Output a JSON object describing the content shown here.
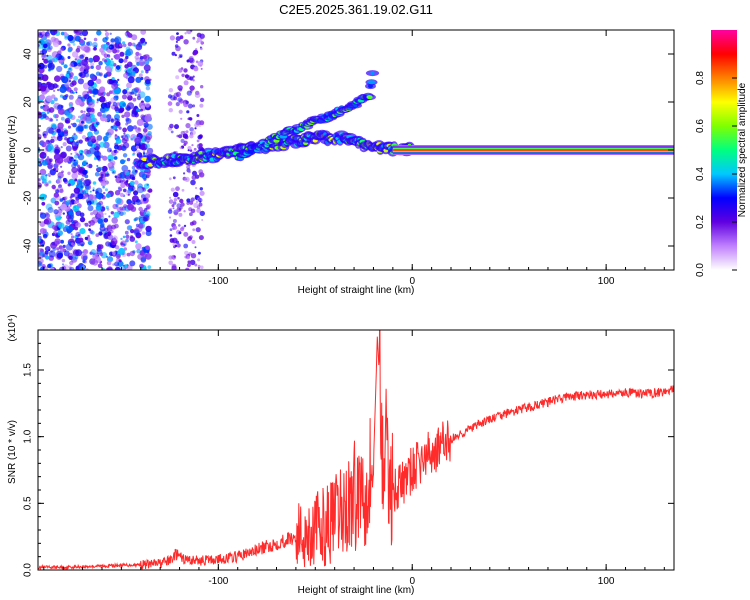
{
  "title": "C2E5.2025.361.19.02.G11",
  "chart_data": [
    {
      "type": "heatmap",
      "name": "spectrogram",
      "xlabel": "Height of straight line (km)",
      "ylabel": "Frequency (Hz)",
      "xlim": [
        -193,
        135
      ],
      "ylim": [
        -50,
        50
      ],
      "xticks": [
        -100,
        0,
        100
      ],
      "yticks": [
        -40,
        -20,
        0,
        20,
        40
      ],
      "colorbar": {
        "label": "Normalized spectral amplitude",
        "range": [
          0,
          1
        ],
        "ticks": [
          "0.0",
          "0.2",
          "0.4",
          "0.6",
          "0.8"
        ],
        "colors": [
          "#ffffff",
          "#c080ff",
          "#6000e0",
          "#0000ff",
          "#00c8ff",
          "#00ff80",
          "#80ff00",
          "#ffff00",
          "#ff8000",
          "#ff0000",
          "#ff00a0"
        ]
      },
      "features": [
        {
          "label": "scattered noise",
          "x_range": [
            -193,
            -135
          ],
          "y_range": [
            -50,
            50
          ],
          "amplitude": 0.15
        },
        {
          "label": "scattered noise",
          "x_range": [
            -125,
            -108
          ],
          "y_range": [
            -50,
            50
          ],
          "amplitude": 0.08
        },
        {
          "label": "main signal trace",
          "points": [
            [
              -140,
              -5
            ],
            [
              -120,
              -4
            ],
            [
              -100,
              -2
            ],
            [
              -80,
              1
            ],
            [
              -65,
              3
            ],
            [
              -50,
              5
            ],
            [
              -35,
              5
            ],
            [
              -20,
              1
            ],
            [
              0,
              0
            ],
            [
              135,
              0
            ]
          ]
        },
        {
          "label": "upper branch",
          "points": [
            [
              -90,
              -3
            ],
            [
              -60,
              9
            ],
            [
              -40,
              15
            ],
            [
              -22,
              23
            ],
            [
              -20,
              35
            ]
          ]
        },
        {
          "label": "constant tone",
          "x_range": [
            -10,
            135
          ],
          "y": 0,
          "amplitude": 0.9
        }
      ]
    },
    {
      "type": "line",
      "name": "snr",
      "xlabel": "Height of straight line (km)",
      "ylabel": "SNR (10 * v/v)",
      "scale_label": "(x10⁴)",
      "xlim": [
        -193,
        135
      ],
      "ylim": [
        0,
        1.8
      ],
      "xticks": [
        -100,
        0,
        100
      ],
      "yticks": [
        "0.0",
        "0.5",
        "1.0",
        "1.5"
      ],
      "series": [
        {
          "name": "SNR",
          "color": "#ff2a2a",
          "x": [
            -193,
            -180,
            -160,
            -140,
            -130,
            -125,
            -122,
            -118,
            -110,
            -100,
            -90,
            -80,
            -70,
            -60,
            -50,
            -45,
            -40,
            -35,
            -30,
            -25,
            -20,
            -18,
            -15,
            -12,
            -10,
            -5,
            0,
            5,
            10,
            20,
            30,
            40,
            50,
            60,
            70,
            80,
            90,
            100,
            110,
            120,
            135
          ],
          "values": [
            0.02,
            0.02,
            0.03,
            0.04,
            0.05,
            0.07,
            0.12,
            0.08,
            0.07,
            0.08,
            0.1,
            0.15,
            0.2,
            0.25,
            0.3,
            0.33,
            0.38,
            0.45,
            0.55,
            0.65,
            0.78,
            1.75,
            0.9,
            0.7,
            0.6,
            0.65,
            0.75,
            0.82,
            0.88,
            0.98,
            1.06,
            1.13,
            1.18,
            1.22,
            1.26,
            1.3,
            1.31,
            1.32,
            1.33,
            1.32,
            1.35
          ]
        }
      ]
    }
  ]
}
